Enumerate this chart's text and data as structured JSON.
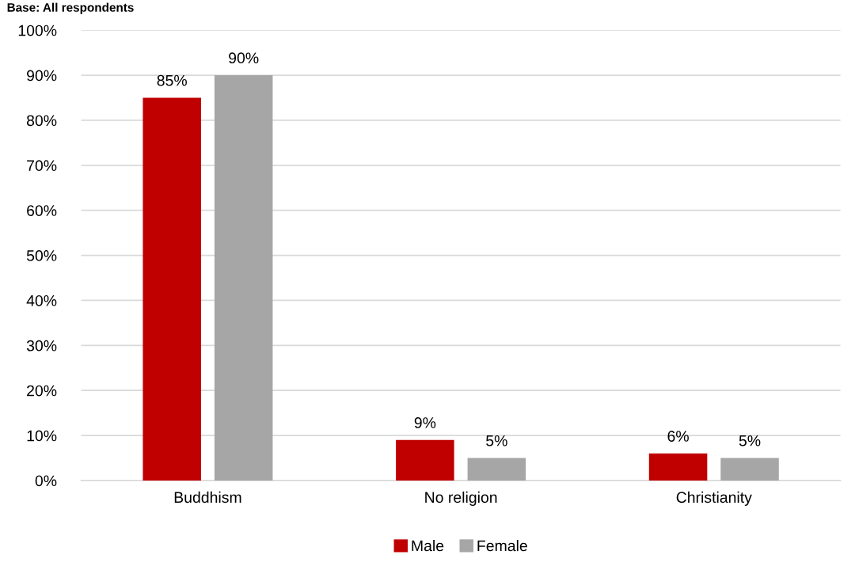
{
  "chart_data": {
    "type": "bar",
    "annotations": [
      "Base: All respondents"
    ],
    "categories": [
      "Buddhism",
      "No religion",
      "Christianity"
    ],
    "series": [
      {
        "name": "Male",
        "color": "#c00000",
        "values": [
          85,
          9,
          6
        ],
        "value_labels": [
          "85%",
          "9%",
          "6%"
        ]
      },
      {
        "name": "Female",
        "color": "#a6a6a6",
        "values": [
          90,
          5,
          5
        ],
        "value_labels": [
          "90%",
          "5%",
          "5%"
        ]
      }
    ],
    "ylim": [
      0,
      100
    ],
    "yticks": [
      {
        "value": 0,
        "label": "0%"
      },
      {
        "value": 10,
        "label": "10%"
      },
      {
        "value": 20,
        "label": "20%"
      },
      {
        "value": 30,
        "label": "30%"
      },
      {
        "value": 40,
        "label": "40%"
      },
      {
        "value": 50,
        "label": "50%"
      },
      {
        "value": 60,
        "label": "60%"
      },
      {
        "value": 70,
        "label": "70%"
      },
      {
        "value": 80,
        "label": "80%"
      },
      {
        "value": 90,
        "label": "90%"
      },
      {
        "value": 100,
        "label": "100%"
      }
    ],
    "grid": "y",
    "legend": "bottom"
  }
}
